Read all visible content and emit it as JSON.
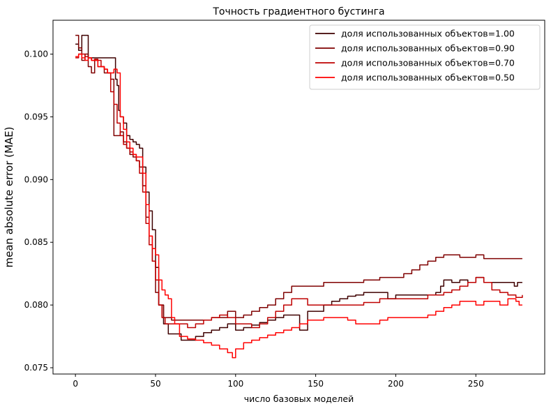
{
  "chart_data": {
    "type": "line",
    "title": "Точность градиентного бустинга",
    "xlabel": "число базовых моделей",
    "ylabel": "mean absolute error (MAE)",
    "xlim": [
      -14,
      293
    ],
    "ylim": [
      0.0745,
      0.1027
    ],
    "xticks": [
      0,
      50,
      100,
      150,
      200,
      250
    ],
    "yticks": [
      0.075,
      0.08,
      0.085,
      0.09,
      0.095,
      0.1
    ],
    "ytick_labels": [
      "0.075",
      "0.080",
      "0.085",
      "0.090",
      "0.095",
      "0.100"
    ],
    "grid": false,
    "legend_position": "top-right",
    "series": [
      {
        "name": "доля использованных объектов=1.00",
        "color": "#3f0000",
        "points": [
          [
            0,
            0.1008
          ],
          [
            2,
            0.1003
          ],
          [
            4,
            0.1015
          ],
          [
            7,
            0.1015
          ],
          [
            8,
            0.0997
          ],
          [
            20,
            0.0997
          ],
          [
            21,
            0.0997
          ],
          [
            24,
            0.0997
          ],
          [
            25,
            0.098
          ],
          [
            26,
            0.0975
          ],
          [
            27,
            0.0955
          ],
          [
            28,
            0.095
          ],
          [
            30,
            0.0945
          ],
          [
            32,
            0.0935
          ],
          [
            34,
            0.0932
          ],
          [
            36,
            0.093
          ],
          [
            38,
            0.0928
          ],
          [
            40,
            0.0925
          ],
          [
            42,
            0.091
          ],
          [
            44,
            0.089
          ],
          [
            46,
            0.0875
          ],
          [
            48,
            0.086
          ],
          [
            50,
            0.083
          ],
          [
            52,
            0.08
          ],
          [
            55,
            0.0785
          ],
          [
            58,
            0.0777
          ],
          [
            62,
            0.0777
          ],
          [
            66,
            0.0772
          ],
          [
            70,
            0.0772
          ],
          [
            75,
            0.0775
          ],
          [
            80,
            0.0778
          ],
          [
            85,
            0.078
          ],
          [
            90,
            0.0782
          ],
          [
            95,
            0.0785
          ],
          [
            100,
            0.078
          ],
          [
            105,
            0.0782
          ],
          [
            110,
            0.0784
          ],
          [
            115,
            0.0786
          ],
          [
            120,
            0.0788
          ],
          [
            125,
            0.079
          ],
          [
            130,
            0.0792
          ],
          [
            135,
            0.0792
          ],
          [
            138,
            0.0792
          ],
          [
            140,
            0.078
          ],
          [
            145,
            0.0795
          ],
          [
            150,
            0.0795
          ],
          [
            155,
            0.08
          ],
          [
            160,
            0.0803
          ],
          [
            165,
            0.0805
          ],
          [
            170,
            0.0807
          ],
          [
            175,
            0.0808
          ],
          [
            180,
            0.081
          ],
          [
            185,
            0.081
          ],
          [
            190,
            0.081
          ],
          [
            195,
            0.0805
          ],
          [
            200,
            0.0808
          ],
          [
            205,
            0.0808
          ],
          [
            210,
            0.0808
          ],
          [
            215,
            0.0808
          ],
          [
            220,
            0.0808
          ],
          [
            225,
            0.081
          ],
          [
            228,
            0.0815
          ],
          [
            230,
            0.082
          ],
          [
            235,
            0.0818
          ],
          [
            240,
            0.082
          ],
          [
            245,
            0.0818
          ],
          [
            250,
            0.0822
          ],
          [
            255,
            0.0818
          ],
          [
            260,
            0.0818
          ],
          [
            265,
            0.0818
          ],
          [
            270,
            0.0818
          ],
          [
            274,
            0.0815
          ],
          [
            276,
            0.0818
          ],
          [
            279,
            0.0818
          ]
        ]
      },
      {
        "name": "доля использованных объектов=0.90",
        "color": "#7f0000",
        "points": [
          [
            0,
            0.1015
          ],
          [
            2,
            0.1005
          ],
          [
            4,
            0.0995
          ],
          [
            6,
            0.1
          ],
          [
            8,
            0.099
          ],
          [
            10,
            0.0985
          ],
          [
            12,
            0.0995
          ],
          [
            14,
            0.099
          ],
          [
            16,
            0.099
          ],
          [
            18,
            0.0985
          ],
          [
            20,
            0.0985
          ],
          [
            22,
            0.098
          ],
          [
            24,
            0.0935
          ],
          [
            26,
            0.0935
          ],
          [
            28,
            0.0938
          ],
          [
            30,
            0.093
          ],
          [
            32,
            0.0925
          ],
          [
            34,
            0.092
          ],
          [
            36,
            0.0918
          ],
          [
            38,
            0.0915
          ],
          [
            40,
            0.091
          ],
          [
            42,
            0.0895
          ],
          [
            44,
            0.087
          ],
          [
            46,
            0.0855
          ],
          [
            48,
            0.0835
          ],
          [
            50,
            0.081
          ],
          [
            52,
            0.08
          ],
          [
            55,
            0.079
          ],
          [
            60,
            0.0788
          ],
          [
            65,
            0.0788
          ],
          [
            70,
            0.0788
          ],
          [
            75,
            0.0788
          ],
          [
            80,
            0.0788
          ],
          [
            85,
            0.079
          ],
          [
            90,
            0.079
          ],
          [
            95,
            0.0795
          ],
          [
            100,
            0.079
          ],
          [
            105,
            0.0792
          ],
          [
            110,
            0.0795
          ],
          [
            115,
            0.0798
          ],
          [
            120,
            0.08
          ],
          [
            125,
            0.0805
          ],
          [
            130,
            0.081
          ],
          [
            135,
            0.0815
          ],
          [
            140,
            0.0815
          ],
          [
            145,
            0.0815
          ],
          [
            150,
            0.0815
          ],
          [
            155,
            0.0818
          ],
          [
            160,
            0.0818
          ],
          [
            170,
            0.0818
          ],
          [
            180,
            0.082
          ],
          [
            190,
            0.0822
          ],
          [
            200,
            0.0822
          ],
          [
            205,
            0.0825
          ],
          [
            210,
            0.0828
          ],
          [
            215,
            0.0832
          ],
          [
            220,
            0.0835
          ],
          [
            225,
            0.0838
          ],
          [
            230,
            0.084
          ],
          [
            240,
            0.0838
          ],
          [
            250,
            0.084
          ],
          [
            255,
            0.0837
          ],
          [
            260,
            0.0837
          ],
          [
            270,
            0.0837
          ],
          [
            279,
            0.0837
          ]
        ]
      },
      {
        "name": "доля использованных объектов=0.70",
        "color": "#bf0000",
        "points": [
          [
            0,
            0.0997
          ],
          [
            2,
            0.1
          ],
          [
            4,
            0.1
          ],
          [
            6,
            0.0998
          ],
          [
            8,
            0.0997
          ],
          [
            10,
            0.0995
          ],
          [
            12,
            0.0996
          ],
          [
            14,
            0.0995
          ],
          [
            16,
            0.099
          ],
          [
            18,
            0.0988
          ],
          [
            20,
            0.0985
          ],
          [
            22,
            0.097
          ],
          [
            24,
            0.096
          ],
          [
            26,
            0.0945
          ],
          [
            28,
            0.0935
          ],
          [
            30,
            0.0928
          ],
          [
            32,
            0.0925
          ],
          [
            34,
            0.0922
          ],
          [
            36,
            0.092
          ],
          [
            38,
            0.0915
          ],
          [
            40,
            0.0905
          ],
          [
            42,
            0.089
          ],
          [
            44,
            0.0865
          ],
          [
            46,
            0.0848
          ],
          [
            48,
            0.0835
          ],
          [
            50,
            0.082
          ],
          [
            52,
            0.08
          ],
          [
            54,
            0.079
          ],
          [
            56,
            0.0785
          ],
          [
            60,
            0.0785
          ],
          [
            65,
            0.0785
          ],
          [
            70,
            0.0782
          ],
          [
            75,
            0.0785
          ],
          [
            80,
            0.0788
          ],
          [
            85,
            0.079
          ],
          [
            90,
            0.0792
          ],
          [
            95,
            0.079
          ],
          [
            100,
            0.0785
          ],
          [
            105,
            0.0785
          ],
          [
            110,
            0.0782
          ],
          [
            115,
            0.0785
          ],
          [
            120,
            0.079
          ],
          [
            125,
            0.0795
          ],
          [
            130,
            0.08
          ],
          [
            135,
            0.0805
          ],
          [
            140,
            0.0805
          ],
          [
            145,
            0.08
          ],
          [
            150,
            0.08
          ],
          [
            155,
            0.08
          ],
          [
            160,
            0.08
          ],
          [
            165,
            0.08
          ],
          [
            170,
            0.08
          ],
          [
            175,
            0.08
          ],
          [
            180,
            0.0802
          ],
          [
            185,
            0.0802
          ],
          [
            190,
            0.0805
          ],
          [
            195,
            0.0805
          ],
          [
            200,
            0.0805
          ],
          [
            205,
            0.0805
          ],
          [
            210,
            0.0805
          ],
          [
            215,
            0.0805
          ],
          [
            220,
            0.0808
          ],
          [
            225,
            0.0808
          ],
          [
            230,
            0.081
          ],
          [
            235,
            0.0812
          ],
          [
            240,
            0.0815
          ],
          [
            245,
            0.0818
          ],
          [
            250,
            0.0822
          ],
          [
            255,
            0.0818
          ],
          [
            260,
            0.0812
          ],
          [
            265,
            0.081
          ],
          [
            270,
            0.0808
          ],
          [
            275,
            0.0806
          ],
          [
            279,
            0.0808
          ]
        ]
      },
      {
        "name": "доля использованных объектов=0.50",
        "color": "#ff0000",
        "points": [
          [
            0,
            0.0998
          ],
          [
            2,
            0.1
          ],
          [
            4,
            0.0997
          ],
          [
            6,
            0.0995
          ],
          [
            8,
            0.0997
          ],
          [
            10,
            0.0995
          ],
          [
            12,
            0.0995
          ],
          [
            14,
            0.099
          ],
          [
            16,
            0.099
          ],
          [
            18,
            0.0988
          ],
          [
            20,
            0.0985
          ],
          [
            22,
            0.0985
          ],
          [
            24,
            0.0988
          ],
          [
            26,
            0.0985
          ],
          [
            28,
            0.095
          ],
          [
            30,
            0.094
          ],
          [
            32,
            0.093
          ],
          [
            34,
            0.0925
          ],
          [
            36,
            0.092
          ],
          [
            38,
            0.0918
          ],
          [
            40,
            0.0918
          ],
          [
            42,
            0.0905
          ],
          [
            44,
            0.088
          ],
          [
            46,
            0.0855
          ],
          [
            48,
            0.0845
          ],
          [
            50,
            0.084
          ],
          [
            52,
            0.082
          ],
          [
            54,
            0.0812
          ],
          [
            56,
            0.0808
          ],
          [
            58,
            0.0805
          ],
          [
            60,
            0.079
          ],
          [
            62,
            0.0785
          ],
          [
            65,
            0.0775
          ],
          [
            70,
            0.0773
          ],
          [
            75,
            0.0772
          ],
          [
            80,
            0.077
          ],
          [
            85,
            0.0768
          ],
          [
            90,
            0.0765
          ],
          [
            95,
            0.0762
          ],
          [
            98,
            0.0758
          ],
          [
            100,
            0.0765
          ],
          [
            105,
            0.077
          ],
          [
            110,
            0.0772
          ],
          [
            115,
            0.0774
          ],
          [
            120,
            0.0776
          ],
          [
            125,
            0.0778
          ],
          [
            130,
            0.078
          ],
          [
            135,
            0.0782
          ],
          [
            140,
            0.0785
          ],
          [
            145,
            0.0788
          ],
          [
            150,
            0.0788
          ],
          [
            155,
            0.079
          ],
          [
            160,
            0.079
          ],
          [
            165,
            0.079
          ],
          [
            170,
            0.0788
          ],
          [
            175,
            0.0785
          ],
          [
            180,
            0.0785
          ],
          [
            185,
            0.0785
          ],
          [
            190,
            0.0788
          ],
          [
            195,
            0.079
          ],
          [
            200,
            0.079
          ],
          [
            205,
            0.079
          ],
          [
            210,
            0.079
          ],
          [
            215,
            0.079
          ],
          [
            220,
            0.0792
          ],
          [
            225,
            0.0795
          ],
          [
            230,
            0.0798
          ],
          [
            235,
            0.08
          ],
          [
            240,
            0.0803
          ],
          [
            245,
            0.0803
          ],
          [
            250,
            0.08
          ],
          [
            255,
            0.0803
          ],
          [
            260,
            0.0803
          ],
          [
            265,
            0.08
          ],
          [
            270,
            0.0805
          ],
          [
            275,
            0.0803
          ],
          [
            277,
            0.08
          ],
          [
            279,
            0.08
          ]
        ]
      }
    ]
  }
}
